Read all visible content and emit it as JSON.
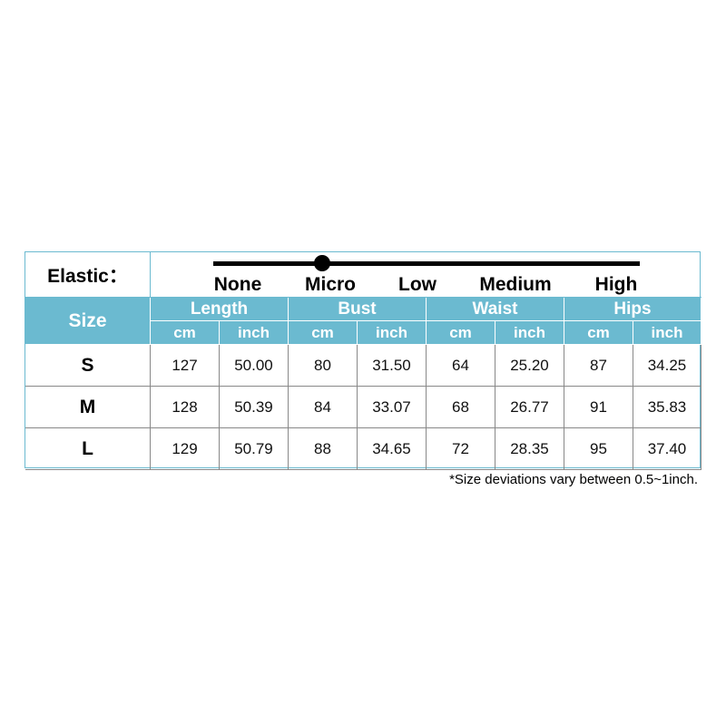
{
  "elastic": {
    "label": "Elastic：",
    "levels": [
      "None",
      "Micro",
      "Low",
      "Medium",
      "High"
    ],
    "selected": "Micro"
  },
  "header": {
    "size": "Size",
    "groups": [
      "Length",
      "Bust",
      "Waist",
      "Hips"
    ],
    "units": [
      "cm",
      "inch",
      "cm",
      "inch",
      "cm",
      "inch",
      "cm",
      "inch"
    ]
  },
  "rows": [
    {
      "size": "S",
      "values": [
        "127",
        "50.00",
        "80",
        "31.50",
        "64",
        "25.20",
        "87",
        "34.25"
      ]
    },
    {
      "size": "M",
      "values": [
        "128",
        "50.39",
        "84",
        "33.07",
        "68",
        "26.77",
        "91",
        "35.83"
      ]
    },
    {
      "size": "L",
      "values": [
        "129",
        "50.79",
        "88",
        "34.65",
        "72",
        "28.35",
        "95",
        "37.40"
      ]
    }
  ],
  "note": "*Size deviations vary between 0.5~1inch.",
  "colors": {
    "header": "#6bbad0"
  }
}
